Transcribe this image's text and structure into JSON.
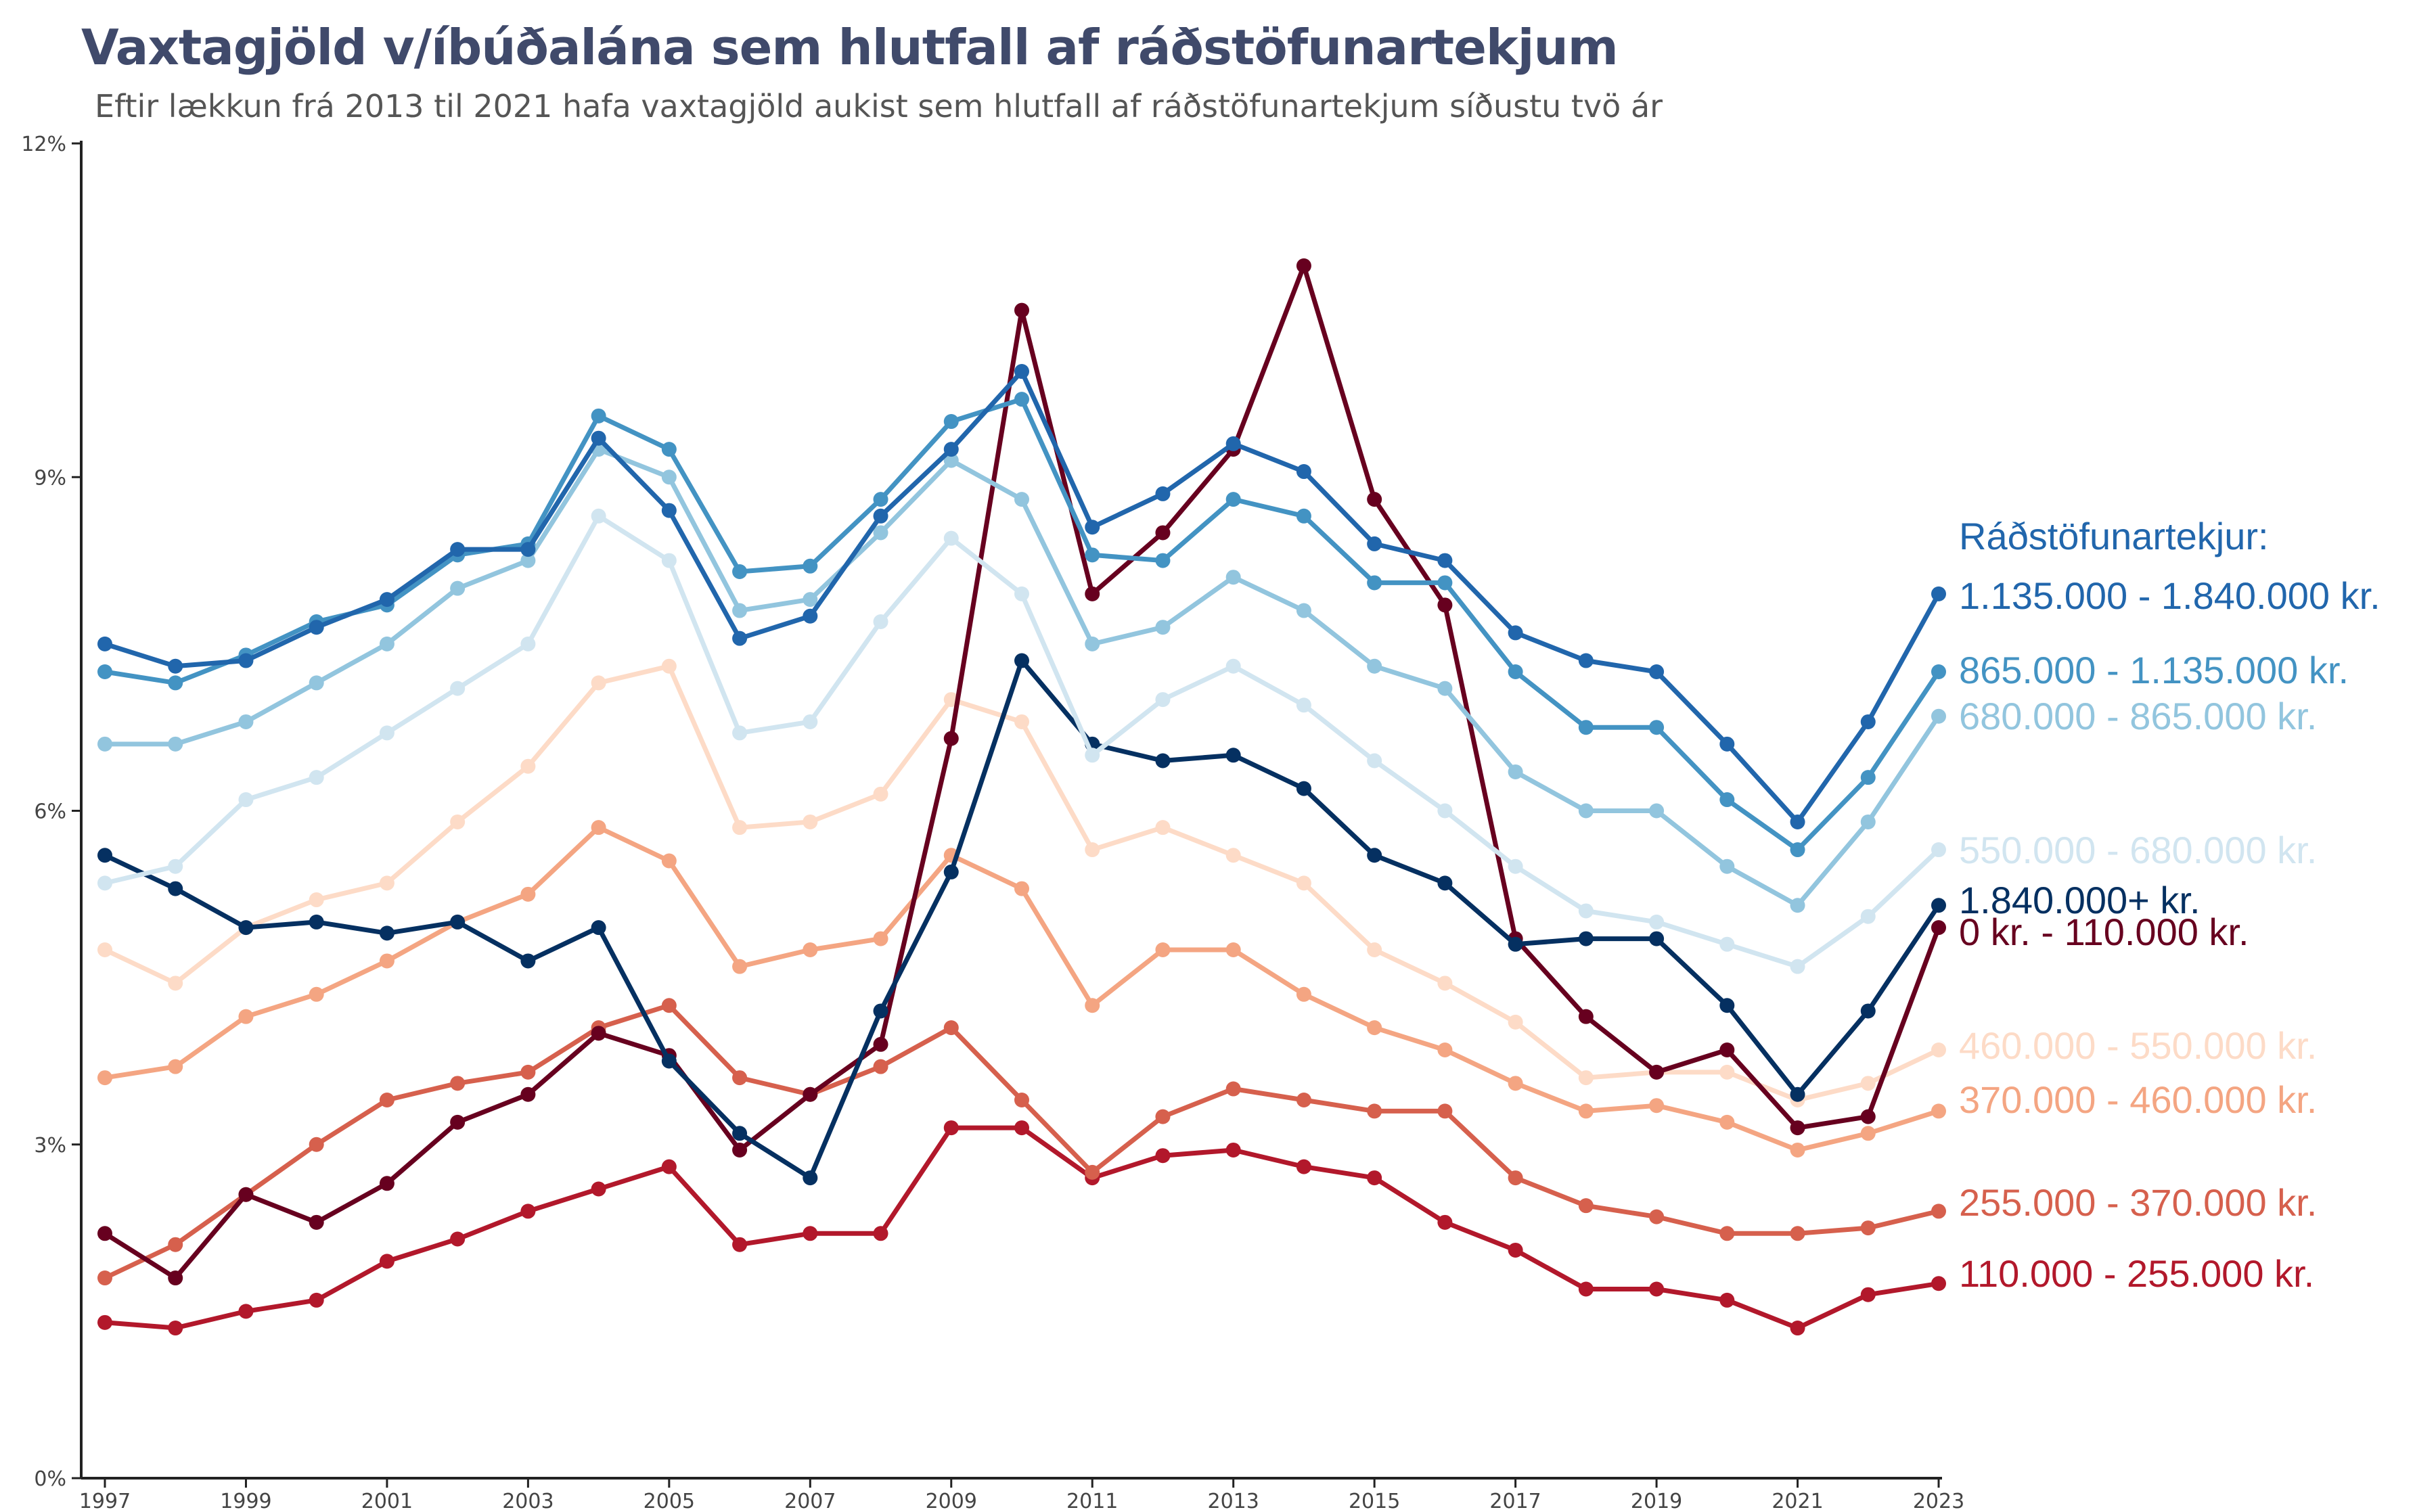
{
  "chart_data": {
    "type": "line",
    "title": "Vaxtagjöld v/íbúðalána sem hlutfall af ráðstöfunartekjum",
    "subtitle": "Eftir lækkun frá 2013 til 2021 hafa vaxtagjöld aukist sem hlutfall af ráðstöfunartekjum síðustu tvö ár",
    "xlabel": "",
    "ylabel": "",
    "ylim": [
      0,
      12
    ],
    "yticks": [
      0,
      3,
      6,
      9,
      12
    ],
    "ytick_labels": [
      "0%",
      "3%",
      "6%",
      "9%",
      "12%"
    ],
    "xticks": [
      1997,
      1999,
      2001,
      2003,
      2005,
      2007,
      2009,
      2011,
      2013,
      2015,
      2017,
      2019,
      2021,
      2023
    ],
    "xtick_labels": [
      "1997",
      "1999",
      "2001",
      "2003",
      "2005",
      "2007",
      "2009",
      "2011",
      "2013",
      "2015",
      "2017",
      "2019",
      "2021",
      "2023"
    ],
    "legend_title": "Ráðstöfunartekjur:",
    "legend_title_color": "#2166ac",
    "x": [
      1997,
      1998,
      1999,
      2000,
      2001,
      2002,
      2003,
      2004,
      2005,
      2006,
      2007,
      2008,
      2009,
      2010,
      2011,
      2012,
      2013,
      2014,
      2015,
      2016,
      2017,
      2018,
      2019,
      2020,
      2021,
      2022,
      2023
    ],
    "series": [
      {
        "name": "1.135.000 - 1.840.000 kr.",
        "color": "#2166ac",
        "values": [
          7.5,
          7.3,
          7.35,
          7.65,
          7.9,
          8.35,
          8.35,
          9.35,
          8.7,
          7.55,
          7.75,
          8.65,
          9.25,
          9.95,
          8.55,
          8.85,
          9.3,
          9.05,
          8.4,
          8.25,
          7.6,
          7.35,
          7.25,
          6.6,
          5.9,
          6.8,
          7.95
        ]
      },
      {
        "name": "865.000 - 1.135.000 kr.",
        "color": "#4393c3",
        "values": [
          7.25,
          7.15,
          7.4,
          7.7,
          7.85,
          8.3,
          8.4,
          9.55,
          9.25,
          8.15,
          8.2,
          8.8,
          9.5,
          9.7,
          8.3,
          8.25,
          8.8,
          8.65,
          8.05,
          8.05,
          7.25,
          6.75,
          6.75,
          6.1,
          5.65,
          6.3,
          7.25
        ]
      },
      {
        "name": "680.000 - 865.000 kr.",
        "color": "#92c5de",
        "values": [
          6.6,
          6.6,
          6.8,
          7.15,
          7.5,
          8.0,
          8.25,
          9.25,
          9.0,
          7.8,
          7.9,
          8.5,
          9.15,
          8.8,
          7.5,
          7.65,
          8.1,
          7.8,
          7.3,
          7.1,
          6.35,
          6.0,
          6.0,
          5.5,
          5.15,
          5.9,
          6.85
        ]
      },
      {
        "name": "550.000 - 680.000 kr.",
        "color": "#d1e5f0",
        "values": [
          5.35,
          5.5,
          6.1,
          6.3,
          6.7,
          7.1,
          7.5,
          8.65,
          8.25,
          6.7,
          6.8,
          7.7,
          8.45,
          7.95,
          6.5,
          7.0,
          7.3,
          6.95,
          6.45,
          6.0,
          5.5,
          5.1,
          5.0,
          4.8,
          4.6,
          5.05,
          5.65
        ]
      },
      {
        "name": "1.840.000+ kr.",
        "color": "#053061",
        "values": [
          5.6,
          5.3,
          4.95,
          5.0,
          4.9,
          5.0,
          4.65,
          4.95,
          3.75,
          3.1,
          2.7,
          4.2,
          5.45,
          7.35,
          6.6,
          6.45,
          6.5,
          6.2,
          5.6,
          5.35,
          4.8,
          4.85,
          4.85,
          4.25,
          3.45,
          4.2,
          5.15
        ]
      },
      {
        "name": "0 kr. - 110.000 kr.",
        "color": "#67001f",
        "values": [
          2.2,
          1.8,
          2.55,
          2.3,
          2.65,
          3.2,
          3.45,
          4.0,
          3.8,
          2.95,
          3.45,
          3.9,
          6.65,
          10.5,
          7.95,
          8.5,
          9.25,
          10.9,
          8.8,
          7.85,
          4.85,
          4.15,
          3.65,
          3.85,
          3.15,
          3.25,
          4.95
        ]
      },
      {
        "name": "460.000 - 550.000 kr.",
        "color": "#fddbc7",
        "values": [
          4.75,
          4.45,
          4.95,
          5.2,
          5.35,
          5.9,
          6.4,
          7.15,
          7.3,
          5.85,
          5.9,
          6.15,
          7.0,
          6.8,
          5.65,
          5.85,
          5.6,
          5.35,
          4.75,
          4.45,
          4.1,
          3.6,
          3.65,
          3.65,
          3.4,
          3.55,
          3.85
        ]
      },
      {
        "name": "370.000 - 460.000 kr.",
        "color": "#f4a582",
        "values": [
          3.6,
          3.7,
          4.15,
          4.35,
          4.65,
          5.0,
          5.25,
          5.85,
          5.55,
          4.6,
          4.75,
          4.85,
          5.6,
          5.3,
          4.25,
          4.75,
          4.75,
          4.35,
          4.05,
          3.85,
          3.55,
          3.3,
          3.35,
          3.2,
          2.95,
          3.1,
          3.3
        ]
      },
      {
        "name": "255.000 - 370.000 kr.",
        "color": "#d6604d",
        "values": [
          1.8,
          2.1,
          2.55,
          3.0,
          3.4,
          3.55,
          3.65,
          4.05,
          4.25,
          3.6,
          3.45,
          3.7,
          4.05,
          3.4,
          2.75,
          3.25,
          3.5,
          3.4,
          3.3,
          3.3,
          2.7,
          2.45,
          2.35,
          2.2,
          2.2,
          2.25,
          2.4
        ]
      },
      {
        "name": "110.000 - 255.000 kr.",
        "color": "#b2182b",
        "values": [
          1.4,
          1.35,
          1.5,
          1.6,
          1.95,
          2.15,
          2.4,
          2.6,
          2.8,
          2.1,
          2.2,
          2.2,
          3.15,
          3.15,
          2.7,
          2.9,
          2.95,
          2.8,
          2.7,
          2.3,
          2.05,
          1.7,
          1.7,
          1.6,
          1.35,
          1.65,
          1.75
        ]
      }
    ]
  }
}
